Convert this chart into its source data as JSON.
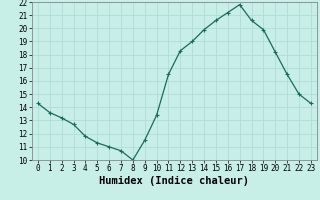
{
  "x": [
    0,
    1,
    2,
    3,
    4,
    5,
    6,
    7,
    8,
    9,
    10,
    11,
    12,
    13,
    14,
    15,
    16,
    17,
    18,
    19,
    20,
    21,
    22,
    23
  ],
  "y": [
    14.3,
    13.6,
    13.2,
    12.7,
    11.8,
    11.3,
    11.0,
    10.7,
    10.0,
    11.5,
    13.4,
    16.5,
    18.3,
    19.0,
    19.9,
    20.6,
    21.2,
    21.8,
    20.6,
    19.9,
    18.2,
    16.5,
    15.0,
    14.3
  ],
  "xlabel": "Humidex (Indice chaleur)",
  "ylim": [
    10,
    22
  ],
  "xlim": [
    -0.5,
    23.5
  ],
  "yticks": [
    10,
    11,
    12,
    13,
    14,
    15,
    16,
    17,
    18,
    19,
    20,
    21,
    22
  ],
  "xticks": [
    0,
    1,
    2,
    3,
    4,
    5,
    6,
    7,
    8,
    9,
    10,
    11,
    12,
    13,
    14,
    15,
    16,
    17,
    18,
    19,
    20,
    21,
    22,
    23
  ],
  "line_color": "#1a6b5a",
  "marker": "+",
  "bg_color": "#c8eee8",
  "grid_color": "#b0ddd6",
  "tick_label_fontsize": 5.5,
  "xlabel_fontsize": 7.5
}
